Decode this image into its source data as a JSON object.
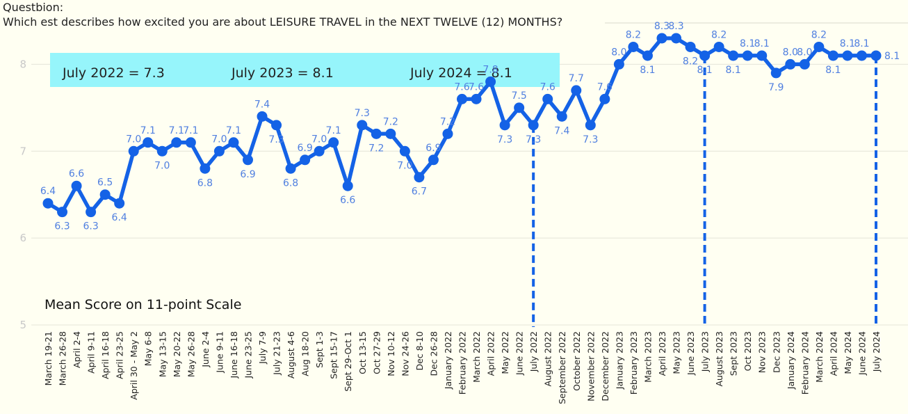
{
  "question": {
    "heading": "Questbion:",
    "text": "Which est describes how excited you are about LEISURE TRAVEL in the NEXT TWELVE (12) MONTHS?"
  },
  "chart_data": {
    "type": "line",
    "title": "Which est describes how excited you are about LEISURE TRAVEL in the NEXT TWELVE (12) MONTHS?",
    "ylabel": "Mean Score on 11-point Scale",
    "ylim": [
      5,
      8.5
    ],
    "yticks": [
      "5",
      "6",
      "7",
      "8"
    ],
    "grid": true,
    "color": "#1462e6",
    "label_color": "#4f7fe0",
    "highlight_box": {
      "color": "#96f5fb",
      "items": [
        "July 2022 = 7.3",
        "July 2023 = 8.1",
        "July  2024 = 8.1"
      ]
    },
    "reference_lines": [
      "July 2022",
      "July 2023",
      "July 2024"
    ],
    "x": [
      "March 19-21",
      "March 26-28",
      "April 2-4",
      "April 9-11",
      "April 16-18",
      "April 23-25",
      "April 30 - May 2",
      "May 6-8",
      "May 13-15",
      "May 20-22",
      "May 26-28",
      "June 2-4",
      "June 9-11",
      "June 16-18",
      "June 23-25",
      "July 7-9",
      "July 21-23",
      "August 4-6",
      "Aug 18-20",
      "Sept 1-3",
      "Sept 15-17",
      "Sept 29-Oct 1",
      "Oct 13-15",
      "Oct 27-29",
      "Nov 10-12",
      "Nov 24-26",
      "Dec 8-10",
      "Dec 26-28",
      "January 2022",
      "February 2022",
      "March 2022",
      "April 2022",
      "May 2022",
      "June 2022",
      "July 2022",
      "August 2022",
      "September 2022",
      "October 2022",
      "November 2022",
      "December 2022",
      "January 2023",
      "February 2023",
      "March 2023",
      "April 2023",
      "May 2023",
      "June 2023",
      "July 2023",
      "August 2023",
      "Sept 2023",
      "Oct 2023",
      "Nov 2023",
      "Dec 2023",
      "January 2024",
      "February 2024",
      "March 2024",
      "April 2024",
      "May 2024",
      "June 2024",
      "July 2024"
    ],
    "values": [
      6.4,
      6.3,
      6.6,
      6.3,
      6.5,
      6.4,
      7.0,
      7.1,
      7.0,
      7.1,
      7.1,
      6.8,
      7.0,
      7.1,
      6.9,
      7.4,
      7.3,
      6.8,
      6.9,
      7.0,
      7.1,
      6.6,
      7.3,
      7.2,
      7.2,
      7.0,
      6.7,
      6.9,
      7.2,
      7.6,
      7.6,
      7.8,
      7.3,
      7.5,
      7.3,
      7.6,
      7.4,
      7.7,
      7.3,
      7.6,
      8.0,
      8.2,
      8.1,
      8.3,
      8.3,
      8.2,
      8.1,
      8.2,
      8.1,
      8.1,
      8.1,
      7.9,
      8.0,
      8.0,
      8.2,
      8.1,
      8.1,
      8.1,
      8.1
    ],
    "data_labels": [
      "6.4",
      "6.3",
      "6.6",
      "6.3",
      "6.5",
      "6.4",
      "7.0",
      "7.1",
      "7.0",
      "7.1",
      "7.1",
      "6.8",
      "7.0",
      "7.1",
      "6.9",
      "7.4",
      "7.3",
      "6.8",
      "6.9",
      "7.0",
      "7.1",
      "6.6",
      "7.3",
      "7.2",
      "7.2",
      "7.0",
      "6.7",
      "6.9",
      "7.2",
      "7.6",
      "7.6",
      "7.8",
      "7.3",
      "7.5",
      "7.3",
      "7.6",
      "7.4",
      "7.7",
      "7.3",
      "7.6",
      "8.0",
      "8.2",
      "8.1",
      "8.3",
      "8.3",
      "8.2",
      "8.1",
      "8.2",
      "8.1",
      "8.1",
      "8.1",
      "7.9",
      "8.0",
      "8.0",
      "8.2",
      "8.1",
      "8.1",
      "8.1",
      "8.1"
    ]
  }
}
